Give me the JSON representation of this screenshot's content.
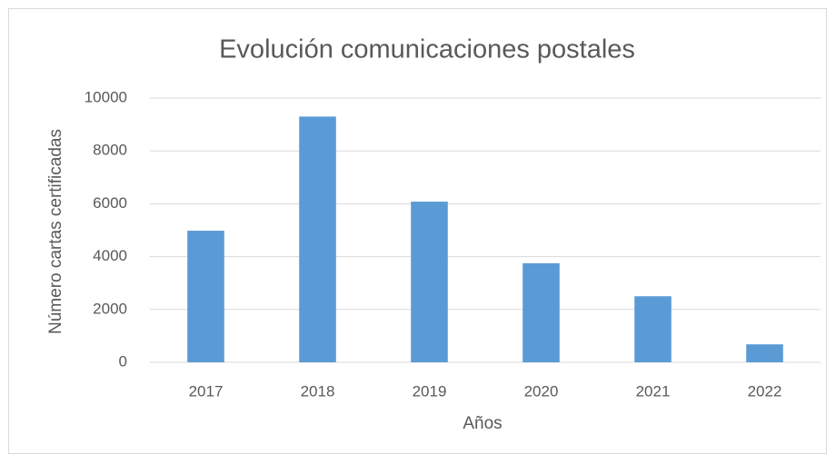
{
  "chart_data": {
    "type": "bar",
    "title": "Evolución comunicaciones postales",
    "x_label": "Años",
    "y_label": "Número cartas certificadas",
    "categories": [
      "2017",
      "2018",
      "2019",
      "2020",
      "2021",
      "2022"
    ],
    "values": [
      4980,
      9300,
      6080,
      3750,
      2500,
      680
    ],
    "color": "#5b9bd5",
    "ylim": [
      0,
      10000
    ],
    "yticks": [
      0,
      2000,
      4000,
      6000,
      8000,
      10000
    ],
    "grid": true
  }
}
